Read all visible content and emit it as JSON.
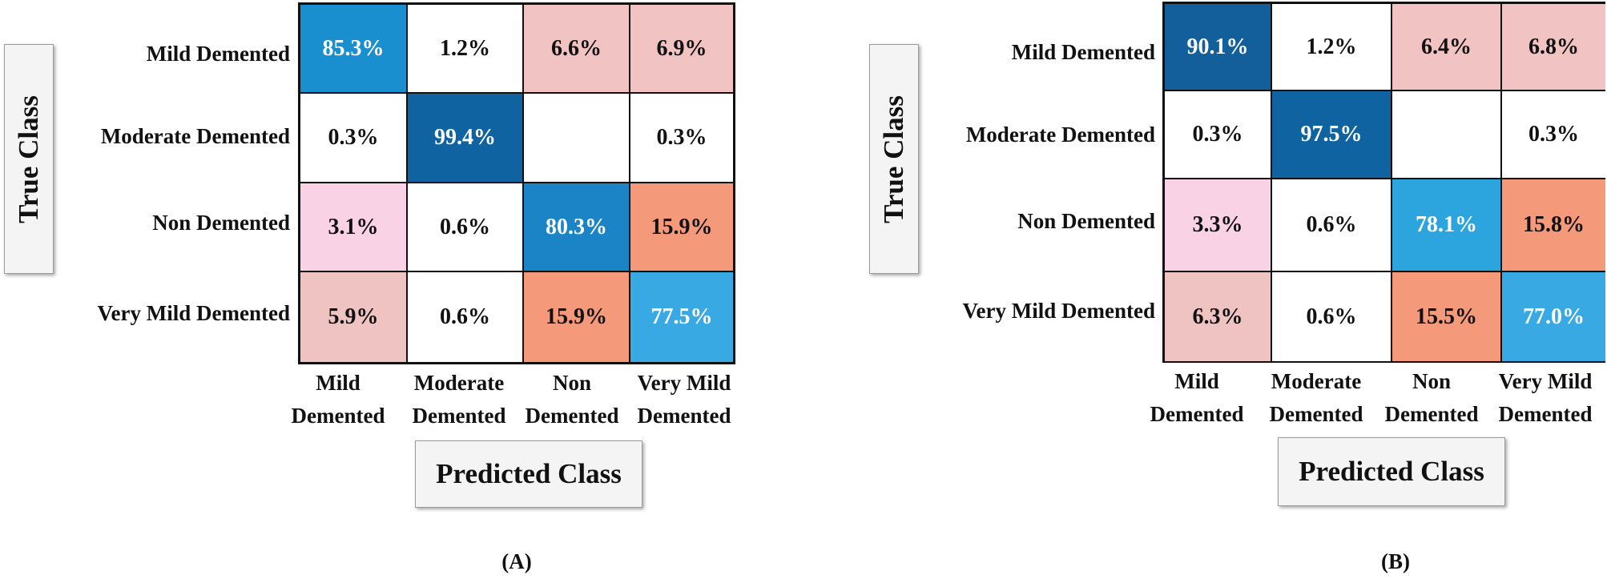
{
  "chart_data": [
    {
      "type": "heatmap",
      "caption": "(A)",
      "xlabel": "Predicted Class",
      "ylabel": "True Class",
      "rows": [
        "Mild Demented",
        "Moderate Demented",
        "Non Demented",
        "Very Mild Demented"
      ],
      "columns": [
        [
          "Mild",
          "Demented"
        ],
        [
          "Moderate",
          "Demented"
        ],
        [
          "Non",
          "Demented"
        ],
        [
          "Very Mild",
          "Demented"
        ]
      ],
      "values": [
        [
          "85.3%",
          "1.2%",
          "6.6%",
          "6.9%"
        ],
        [
          "0.3%",
          "99.4%",
          "",
          "0.3%"
        ],
        [
          "3.1%",
          "0.6%",
          "80.3%",
          "15.9%"
        ],
        [
          "5.9%",
          "0.6%",
          "15.9%",
          "77.5%"
        ]
      ],
      "colors": [
        [
          "#1a8fd0",
          "#ffffff",
          "#f2c3c3",
          "#f2c3c3"
        ],
        [
          "#ffffff",
          "#0f63a1",
          "#ffffff",
          "#ffffff"
        ],
        [
          "#f9d2e6",
          "#ffffff",
          "#1b84c6",
          "#f4997a"
        ],
        [
          "#f0c3c3",
          "#ffffff",
          "#f4997a",
          "#38a9e2"
        ]
      ],
      "light_text": [
        [
          true,
          false,
          false,
          false
        ],
        [
          false,
          true,
          false,
          false
        ],
        [
          false,
          false,
          true,
          false
        ],
        [
          false,
          false,
          false,
          true
        ]
      ]
    },
    {
      "type": "heatmap",
      "caption": "(B)",
      "xlabel": "Predicted Class",
      "ylabel": "True Class",
      "rows": [
        "Mild Demented",
        "Moderate Demented",
        "Non Demented",
        "Very Mild Demented"
      ],
      "columns": [
        [
          "Mild",
          "Demented"
        ],
        [
          "Moderate",
          "Demented"
        ],
        [
          "Non",
          "Demented"
        ],
        [
          "Very Mild",
          "Demented"
        ]
      ],
      "values": [
        [
          "90.1%",
          "1.2%",
          "6.4%",
          "6.8%"
        ],
        [
          "0.3%",
          "97.5%",
          "",
          "0.3%"
        ],
        [
          "3.3%",
          "0.6%",
          "78.1%",
          "15.8%"
        ],
        [
          "6.3%",
          "0.6%",
          "15.5%",
          "77.0%"
        ]
      ],
      "colors": [
        [
          "#125f9c",
          "#ffffff",
          "#f2c3c3",
          "#f2c3c3"
        ],
        [
          "#ffffff",
          "#0f63a1",
          "#ffffff",
          "#ffffff"
        ],
        [
          "#f9d2e6",
          "#ffffff",
          "#2ca5df",
          "#f4997a"
        ],
        [
          "#f0c3c3",
          "#ffffff",
          "#f4997a",
          "#38a9e2"
        ]
      ],
      "light_text": [
        [
          true,
          false,
          false,
          false
        ],
        [
          false,
          true,
          false,
          false
        ],
        [
          false,
          false,
          true,
          false
        ],
        [
          false,
          false,
          false,
          true
        ]
      ]
    }
  ]
}
